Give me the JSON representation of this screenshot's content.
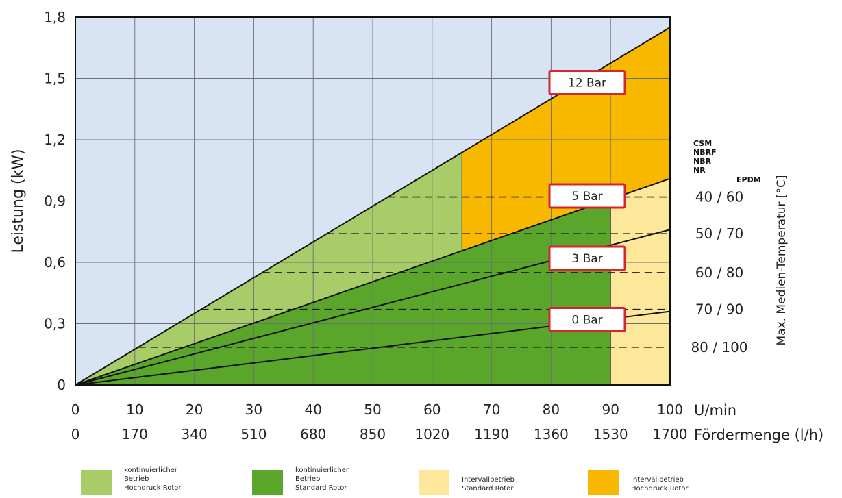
{
  "chart_data": {
    "type": "area",
    "ylabel": "Leistung (kW)",
    "y_ticks": [
      "1,8",
      "1,5",
      "1,2",
      "0,9",
      "0,6",
      "0,3",
      "0"
    ],
    "y_tick_values": [
      1.8,
      1.5,
      1.2,
      0.9,
      0.6,
      0.3,
      0
    ],
    "ylim": [
      0,
      1.8
    ],
    "x_ticks_rpm": [
      "0",
      "10",
      "20",
      "30",
      "40",
      "50",
      "60",
      "70",
      "80",
      "90",
      "100"
    ],
    "x_unit_rpm": "U/min",
    "x_ticks_flow": [
      "0",
      "170",
      "340",
      "510",
      "680",
      "850",
      "1020",
      "1190",
      "1360",
      "1530",
      "1700"
    ],
    "x_unit_flow": "Fördermenge (l/h)",
    "xlim": [
      0,
      100
    ],
    "grid": true,
    "pressure_lines": [
      {
        "name": "0 Bar",
        "x": [
          0,
          100
        ],
        "y": [
          0,
          0.36
        ]
      },
      {
        "name": "3 Bar",
        "x": [
          0,
          100
        ],
        "y": [
          0,
          0.76
        ]
      },
      {
        "name": "5 Bar",
        "x": [
          0,
          100
        ],
        "y": [
          0,
          1.01
        ]
      },
      {
        "name": "12 Bar",
        "x": [
          0,
          100
        ],
        "y": [
          0,
          1.75
        ]
      }
    ],
    "regions": [
      {
        "name": "kontinuierlicher Betrieb Hochdruck Rotor",
        "color": "#a8cc68",
        "x_range": [
          0,
          65
        ],
        "between": [
          "5 Bar",
          "12 Bar"
        ]
      },
      {
        "name": "kontinuierlicher Betrieb Standard Rotor",
        "color": "#5aa62a",
        "x_range": [
          0,
          90
        ],
        "below": "5 Bar"
      },
      {
        "name": "Intervallbetrieb Standard Rotor",
        "color": "#fde79a",
        "x_range": [
          90,
          100
        ],
        "below": "5 Bar"
      },
      {
        "name": "Intervallbetrieb Hochdruck Rotor",
        "color": "#f9b800",
        "x_range": [
          65,
          100
        ],
        "between": [
          "5 Bar",
          "12 Bar"
        ]
      }
    ],
    "temperature_axis": {
      "title": "Max. Medien-Temperatur [°C]",
      "material_col1": [
        "CSM",
        "NBRF",
        "NBR",
        "NR"
      ],
      "material_col2": "EPDM",
      "levels": [
        {
          "label": "40 / 60",
          "power": 0.92
        },
        {
          "label": "50 / 70",
          "power": 0.74
        },
        {
          "label": "60 / 80",
          "power": 0.55
        },
        {
          "label": "70 / 90",
          "power": 0.37
        },
        {
          "label": "80 / 100",
          "power": 0.185
        }
      ]
    },
    "legend": [
      {
        "lines": [
          "kontinuierlicher",
          "Betrieb",
          "Hochdruck Rotor"
        ],
        "color": "#a8cc68"
      },
      {
        "lines": [
          "kontinuierlicher",
          "Betrieb",
          "Standard Rotor"
        ],
        "color": "#5aa62a"
      },
      {
        "lines": [
          "Intervallbetrieb",
          "Standard Rotor"
        ],
        "color": "#fde79a"
      },
      {
        "lines": [
          "Intervallbetrieb",
          "Hochdruck Rotor"
        ],
        "color": "#f9b800"
      }
    ],
    "colors": {
      "background": "#d8e3f3",
      "label_border": "#d22630"
    }
  }
}
